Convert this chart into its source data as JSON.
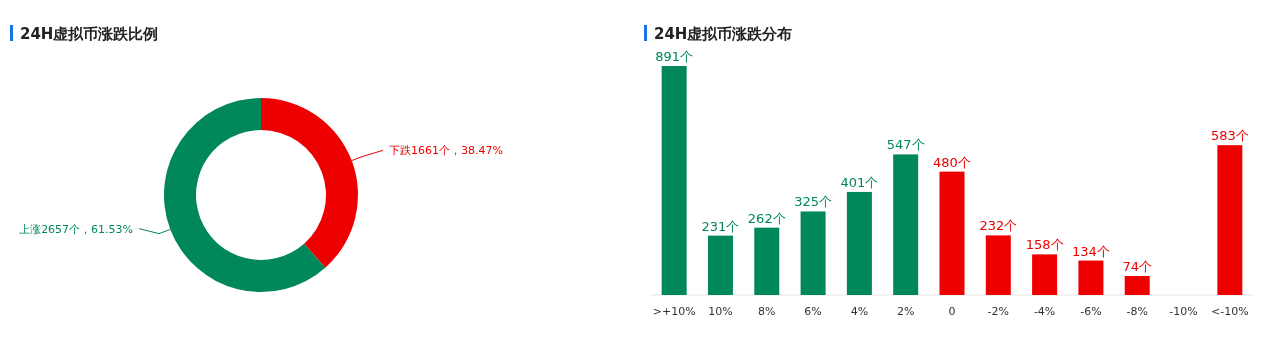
{
  "chart_data": [
    {
      "type": "donut",
      "title": "24H虚拟币涨跌比例",
      "categories": [
        "下跌",
        "上涨"
      ],
      "values": [
        1661,
        2657
      ],
      "colors": [
        "#ee0000",
        "#00875a"
      ],
      "value_labels": [
        "1661个，38.47%",
        "2657个，61.53%"
      ]
    },
    {
      "type": "bar",
      "title": "24H虚拟币涨跌分布",
      "categories": [
        ">+10%",
        "10%",
        "8%",
        "6%",
        "4%",
        "2%",
        "0",
        "-2%",
        "-4%",
        "-6%",
        "-8%",
        "-10%",
        "<-10%"
      ],
      "values": [
        891,
        231,
        262,
        325,
        401,
        547,
        480,
        232,
        158,
        134,
        74,
        null,
        583
      ],
      "colors": [
        "#00875a",
        "#00875a",
        "#00875a",
        "#00875a",
        "#00875a",
        "#00875a",
        "#ee0000",
        "#ee0000",
        "#ee0000",
        "#ee0000",
        "#ee0000",
        "#ee0000",
        "#ee0000"
      ],
      "value_labels": [
        "891个",
        "231个",
        "262个",
        "325个",
        "401个",
        "547个",
        "480个",
        "232个",
        "158个",
        "134个",
        "74个",
        null,
        "583个"
      ]
    }
  ]
}
